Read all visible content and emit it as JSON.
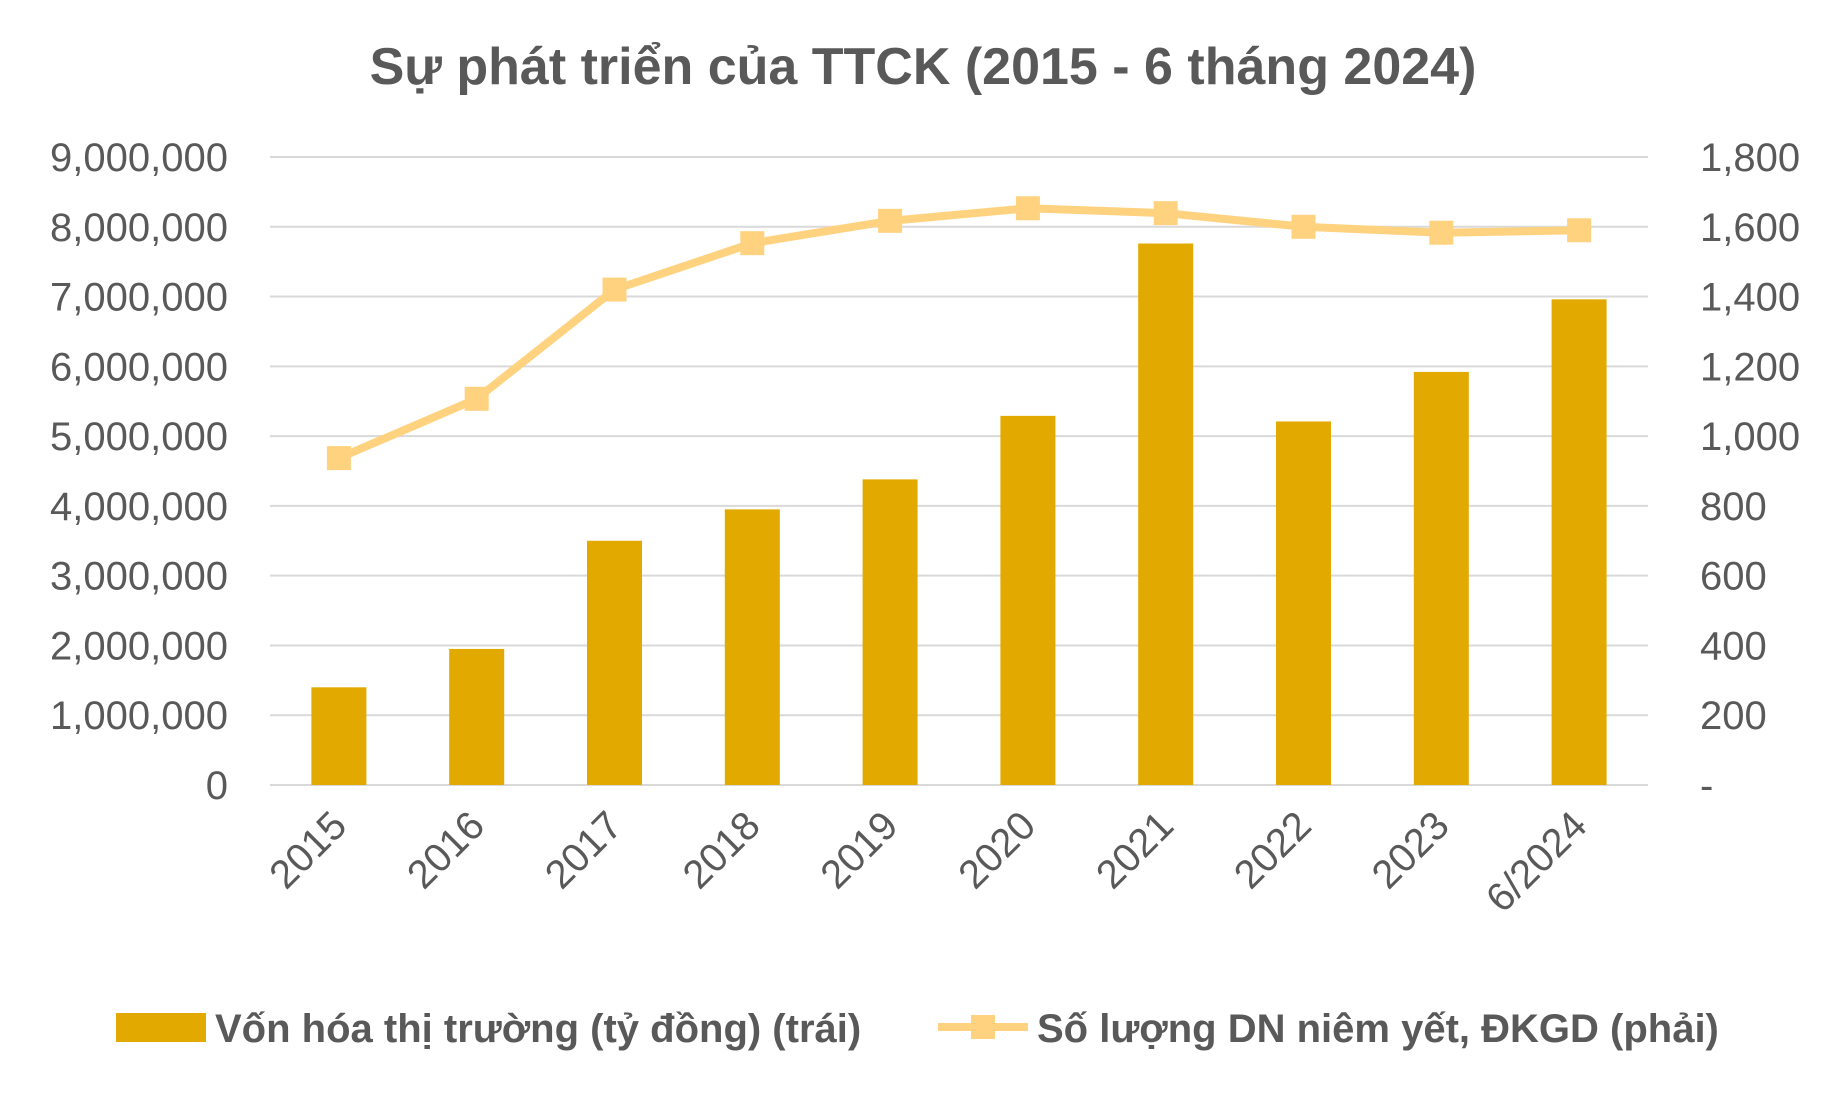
{
  "chart_data": {
    "type": "bar",
    "title": "Sự phát triển của TTCK (2015 - 6 tháng 2024)",
    "categories": [
      "2015",
      "2016",
      "2017",
      "2018",
      "2019",
      "2020",
      "2021",
      "2022",
      "2023",
      "6/2024"
    ],
    "series": [
      {
        "name": "Vốn hóa thị trường (tỷ đồng) (trái)",
        "type": "bar",
        "axis": "left",
        "color": "#E2AA00",
        "values": [
          1400000,
          1950000,
          3500000,
          3950000,
          4380000,
          5290000,
          7760000,
          5210000,
          5920000,
          6960000
        ]
      },
      {
        "name": "Số lượng DN niêm yết, ĐKGD (phải)",
        "type": "line",
        "axis": "right",
        "color": "#FFD27F",
        "values": [
          937,
          1107,
          1420,
          1553,
          1617,
          1653,
          1639,
          1600,
          1583,
          1590
        ]
      }
    ],
    "y_left": {
      "min": 0,
      "max": 9000000,
      "ticks": [
        "0",
        "1,000,000",
        "2,000,000",
        "3,000,000",
        "4,000,000",
        "5,000,000",
        "6,000,000",
        "7,000,000",
        "8,000,000",
        "9,000,000"
      ]
    },
    "y_right": {
      "min": 0,
      "max": 1800,
      "ticks": [
        "-",
        "200",
        "400",
        "600",
        "800",
        "1,000",
        "1,200",
        "1,400",
        "1,600",
        "1,800"
      ]
    },
    "grid": true,
    "gridColor": "#D9D9D9",
    "legend_position": "bottom"
  }
}
